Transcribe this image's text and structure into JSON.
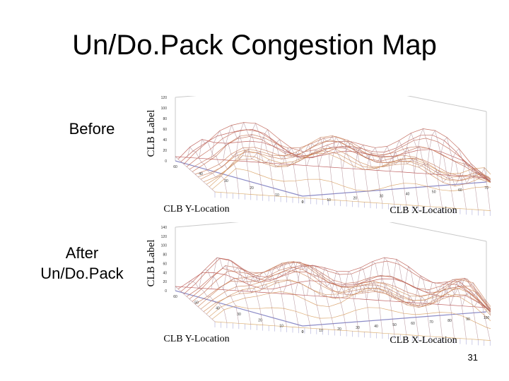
{
  "slide": {
    "title": "Un/Do.Pack Congestion Map",
    "page_number": "31"
  },
  "panels": [
    {
      "label": "Before",
      "z_axis_label": "CLB Label",
      "y_axis_label": "CLB Y-Location",
      "x_axis_label": "CLB X-Location",
      "z_ticks": [
        "120",
        "100",
        "80",
        "60",
        "40",
        "20",
        "0"
      ],
      "y_ticks": [
        "60",
        "40",
        "30",
        "20",
        "10",
        "0"
      ],
      "x_ticks": [
        "0",
        "10",
        "20",
        "30",
        "40",
        "50",
        "60",
        "70"
      ]
    },
    {
      "label": "After\nUn/Do.Pack",
      "z_axis_label": "CLB Label",
      "y_axis_label": "CLB Y-Location",
      "x_axis_label": "CLB X-Location",
      "z_ticks": [
        "140",
        "120",
        "100",
        "80",
        "60",
        "40",
        "20",
        "0"
      ],
      "y_ticks": [
        "60",
        "50",
        "40",
        "30",
        "20",
        "10",
        "0"
      ],
      "x_ticks": [
        "0",
        "10",
        "20",
        "30",
        "40",
        "50",
        "60",
        "70",
        "80",
        "90",
        "100"
      ]
    }
  ],
  "colors": {
    "peak": "#b03a3a",
    "base": "#8c8cc8",
    "box": "#c8c8c8"
  }
}
